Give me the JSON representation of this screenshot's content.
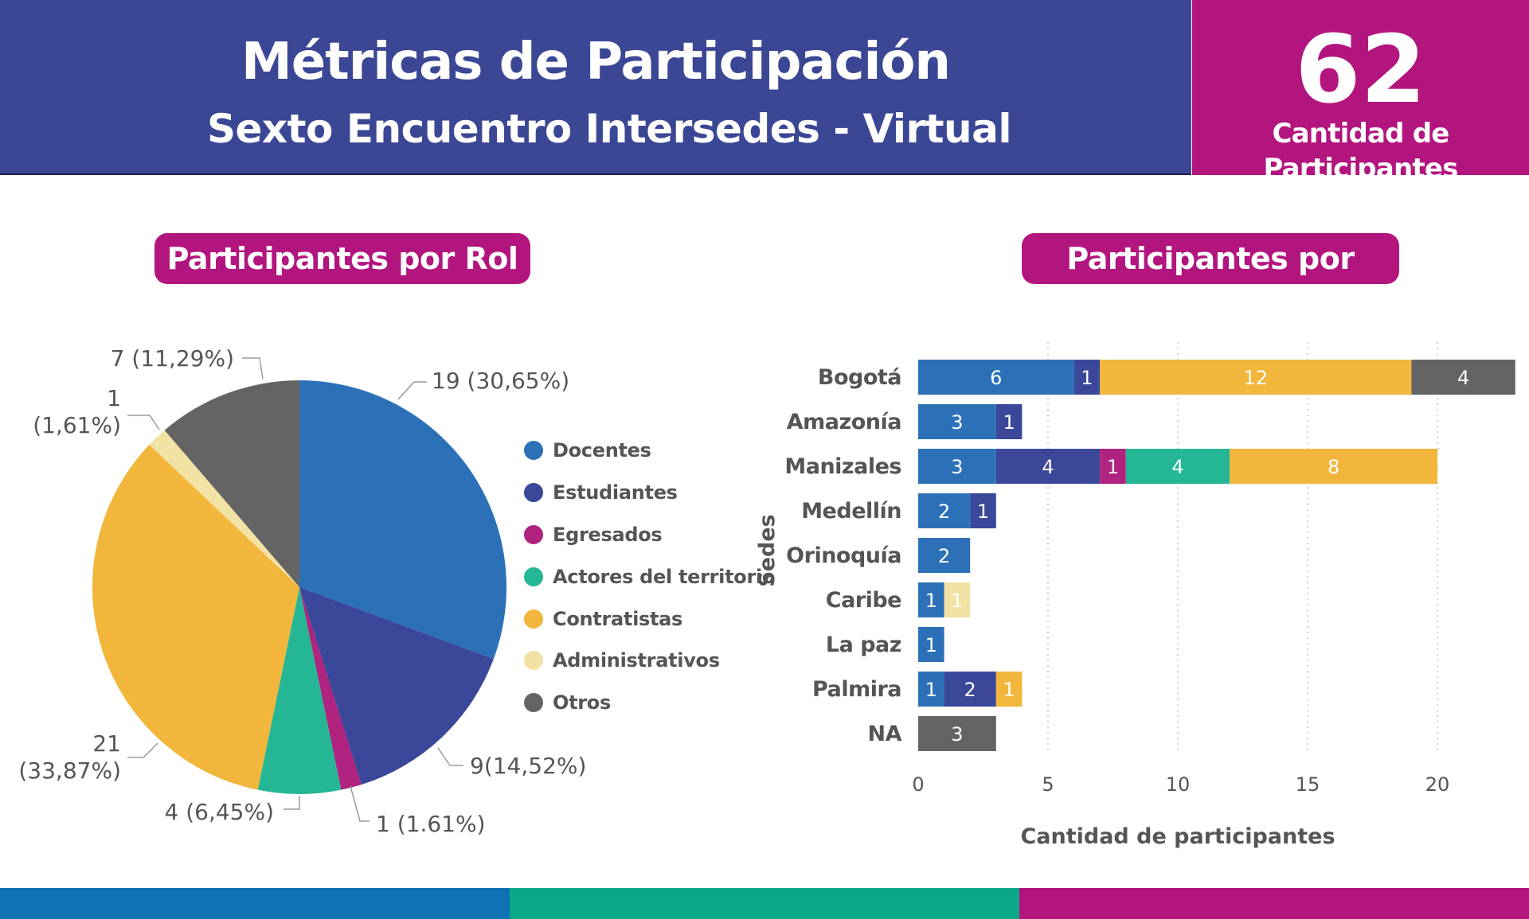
{
  "header": {
    "title": "Métricas de Participación",
    "subtitle": "Sexto Encuentro Intersedes - Virtual",
    "count": "62",
    "count_label": "Cantidad de Participantes"
  },
  "colors": {
    "header_bg": "#3b4795",
    "accent": "#b3157f",
    "docentes": "#2c71b8",
    "estudiantes": "#3b4799",
    "egresados": "#b0237f",
    "actores": "#25b795",
    "contratistas": "#f2b63c",
    "administrativos": "#f2e2a4",
    "otros": "#646464",
    "footer": [
      "#0f72b2",
      "#0aa988",
      "#b3157f"
    ]
  },
  "chart_data": [
    {
      "type": "pie",
      "title": "Participantes por Rol",
      "legend_position": "right",
      "slices": [
        {
          "name": "Docentes",
          "value": 19,
          "label": "19 (30,65%)",
          "color": "#2c71b8"
        },
        {
          "name": "Estudiantes",
          "value": 9,
          "label": "9(14,52%)",
          "color": "#3b4799"
        },
        {
          "name": "Egresados",
          "value": 1,
          "label": "1 (1.61%)",
          "color": "#b0237f"
        },
        {
          "name": "Actores del territorio",
          "value": 4,
          "label": "4 (6,45%)",
          "color": "#25b795"
        },
        {
          "name": "Contratistas",
          "value": 21,
          "label_lines": [
            "21",
            "(33,87%)"
          ],
          "color": "#f2b63c"
        },
        {
          "name": "Administrativos",
          "value": 1,
          "label_lines": [
            "1",
            "(1,61%)"
          ],
          "color": "#f2e2a4"
        },
        {
          "name": "Otros",
          "value": 7,
          "label": "7 (11,29%)",
          "color": "#646464"
        }
      ]
    },
    {
      "type": "bar",
      "orientation": "horizontal",
      "stacked": true,
      "title": "Participantes por Sedes",
      "xlabel": "Cantidad de participantes",
      "ylabel": "Sedes",
      "xlim": [
        0,
        23
      ],
      "xticks": [
        0,
        5,
        10,
        15,
        20
      ],
      "grid": "vertical-dotted",
      "categories": [
        "Bogotá",
        "Amazonía",
        "Manizales",
        "Medellín",
        "Orinoquía",
        "Caribe",
        "La paz",
        "Palmira",
        "NA"
      ],
      "series": [
        {
          "name": "Docentes",
          "color": "#2c71b8",
          "values": [
            6,
            3,
            3,
            2,
            2,
            1,
            1,
            1,
            0
          ]
        },
        {
          "name": "Estudiantes",
          "color": "#3b4799",
          "values": [
            1,
            1,
            4,
            1,
            0,
            0,
            0,
            2,
            0
          ]
        },
        {
          "name": "Egresados",
          "color": "#b0237f",
          "values": [
            0,
            0,
            1,
            0,
            0,
            0,
            0,
            0,
            0
          ]
        },
        {
          "name": "Actores del territorio",
          "color": "#25b795",
          "values": [
            0,
            0,
            4,
            0,
            0,
            0,
            0,
            0,
            0
          ]
        },
        {
          "name": "Contratistas",
          "color": "#f2b63c",
          "values": [
            12,
            0,
            8,
            0,
            0,
            0,
            0,
            1,
            0
          ]
        },
        {
          "name": "Administrativos",
          "color": "#f2e2a4",
          "values": [
            0,
            0,
            0,
            0,
            0,
            1,
            0,
            0,
            0
          ]
        },
        {
          "name": "Otros",
          "color": "#646464",
          "values": [
            4,
            0,
            0,
            0,
            0,
            0,
            0,
            0,
            3
          ]
        }
      ]
    }
  ]
}
